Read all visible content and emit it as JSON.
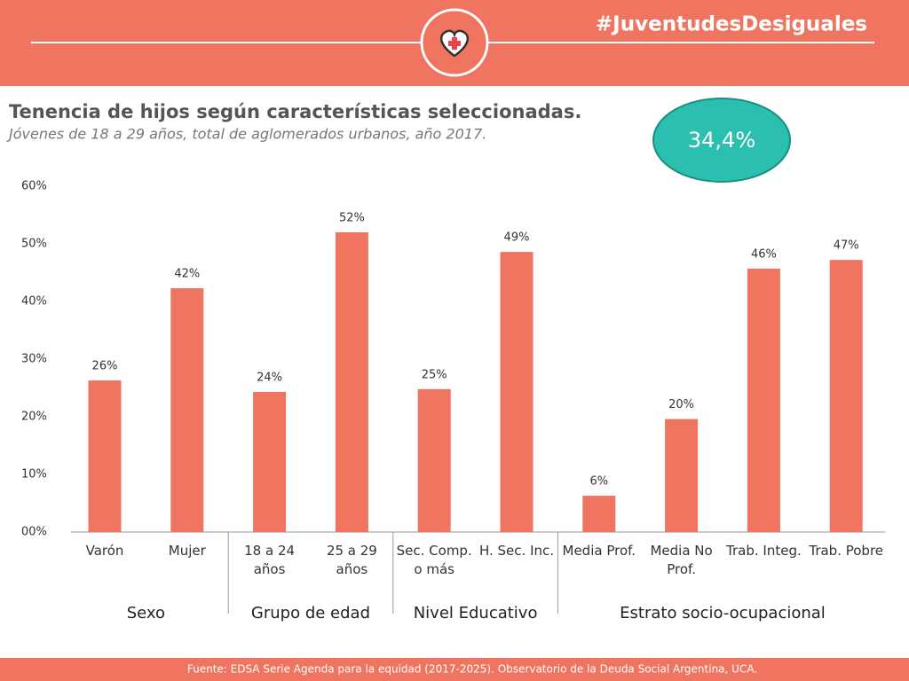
{
  "header": {
    "hashtag": "#JuventudesDesiguales"
  },
  "badge": "34,4%",
  "footer": "Fuente: EDSA Serie Agenda para la equidad (2017-2025). Observatorio de la Deuda Social Argentina, UCA.",
  "chart_data": {
    "type": "bar",
    "title": "Tenencia de hijos según características seleccionadas.",
    "subtitle": "Jóvenes de 18 a 29 años, total de aglomerados urbanos, año 2017.",
    "color": "#f07560",
    "ylim": [
      0,
      60
    ],
    "yticks": [
      {
        "value": 0,
        "label": "00%"
      },
      {
        "value": 10,
        "label": "10%"
      },
      {
        "value": 20,
        "label": "20%"
      },
      {
        "value": 30,
        "label": "30%"
      },
      {
        "value": 40,
        "label": "40%"
      },
      {
        "value": 50,
        "label": "50%"
      },
      {
        "value": 60,
        "label": "60%"
      }
    ],
    "groups": [
      {
        "name": "Sexo",
        "categories": [
          "Varón",
          "Mujer"
        ],
        "values": [
          26.3,
          42.3
        ],
        "value_labels": [
          "26%",
          "42%"
        ]
      },
      {
        "name": "Grupo de edad",
        "categories": [
          "18 a 24 años",
          "25 a 29 años"
        ],
        "values": [
          24.3,
          52
        ],
        "value_labels": [
          "24%",
          "52%"
        ]
      },
      {
        "name": "Nivel Educativo",
        "categories": [
          "Sec. Comp. o más",
          "H. Sec. Inc."
        ],
        "values": [
          24.8,
          48.6
        ],
        "value_labels": [
          "25%",
          "49%"
        ]
      },
      {
        "name": "Estrato socio-ocupacional",
        "categories": [
          "Media Prof.",
          "Media No Prof.",
          "Trab. Integ.",
          "Trab. Pobre"
        ],
        "values": [
          6.3,
          19.6,
          45.7,
          47.2
        ],
        "value_labels": [
          "6%",
          "20%",
          "46%",
          "47%"
        ]
      }
    ]
  }
}
